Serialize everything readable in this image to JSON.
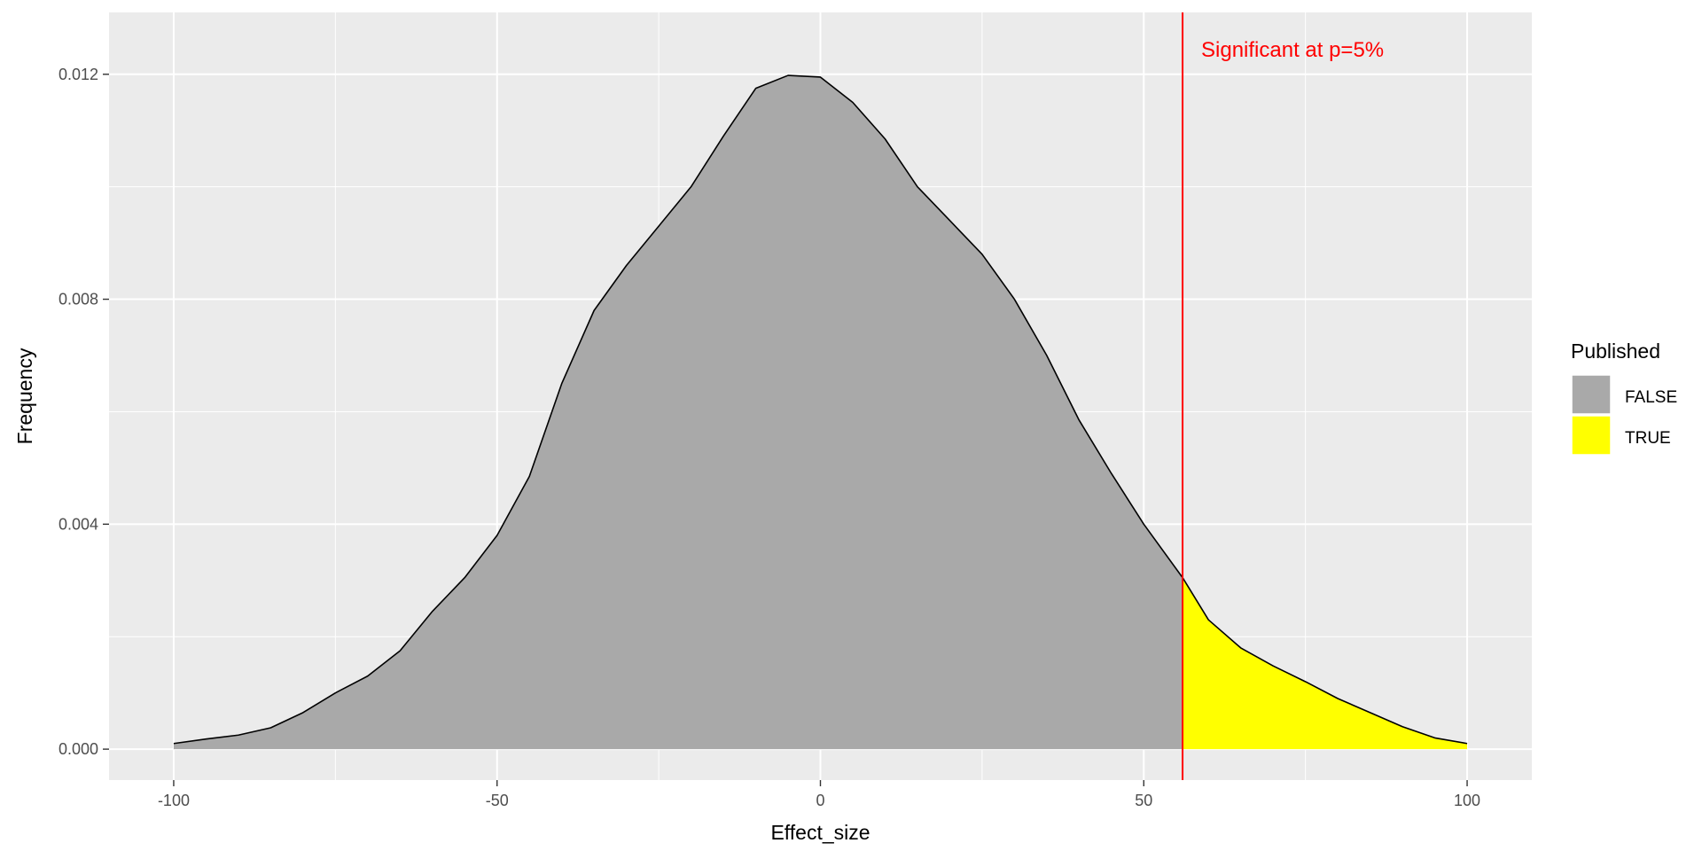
{
  "chart_data": {
    "type": "area",
    "title": "",
    "xlabel": "Effect_size",
    "ylabel": "Frequency",
    "xlim": [
      -110,
      110
    ],
    "ylim": [
      -0.00055,
      0.0131
    ],
    "x_ticks": [
      -100,
      -50,
      0,
      50,
      100
    ],
    "x_tick_labels": [
      "-100",
      "-50",
      "0",
      "50",
      "100"
    ],
    "y_ticks": [
      0.0,
      0.004,
      0.008,
      0.012
    ],
    "y_tick_labels": [
      "0.000",
      "0.004",
      "0.008",
      "0.012"
    ],
    "grid": true,
    "legend": {
      "title": "Published",
      "position": "right",
      "entries": [
        {
          "label": "FALSE",
          "color": "#a9a9a9"
        },
        {
          "label": "TRUE",
          "color": "#ffff00"
        }
      ]
    },
    "threshold": {
      "x": 56,
      "color": "#ff0000",
      "label": "Significant at p=5%"
    },
    "series": [
      {
        "name": "FALSE",
        "color": "#a9a9a9",
        "x": [
          -100,
          -95,
          -90,
          -85,
          -80,
          -75,
          -70,
          -65,
          -60,
          -55,
          -50,
          -45,
          -40,
          -35,
          -30,
          -25,
          -20,
          -15,
          -10,
          -5,
          0,
          5,
          10,
          15,
          20,
          25,
          30,
          35,
          40,
          45,
          50,
          56
        ],
        "y": [
          0.0001,
          0.00018,
          0.00025,
          0.00038,
          0.00065,
          0.001,
          0.0013,
          0.00175,
          0.00245,
          0.00305,
          0.0038,
          0.00485,
          0.0065,
          0.0078,
          0.0086,
          0.0093,
          0.01,
          0.0109,
          0.01175,
          0.01198,
          0.01195,
          0.0115,
          0.01085,
          0.01,
          0.0094,
          0.0088,
          0.008,
          0.007,
          0.00585,
          0.0049,
          0.004,
          0.00305
        ]
      },
      {
        "name": "TRUE",
        "color": "#ffff00",
        "x": [
          56,
          60,
          65,
          70,
          75,
          80,
          85,
          90,
          95,
          100
        ],
        "y": [
          0.00305,
          0.0023,
          0.0018,
          0.00148,
          0.0012,
          0.0009,
          0.00065,
          0.0004,
          0.0002,
          0.0001
        ]
      }
    ]
  }
}
